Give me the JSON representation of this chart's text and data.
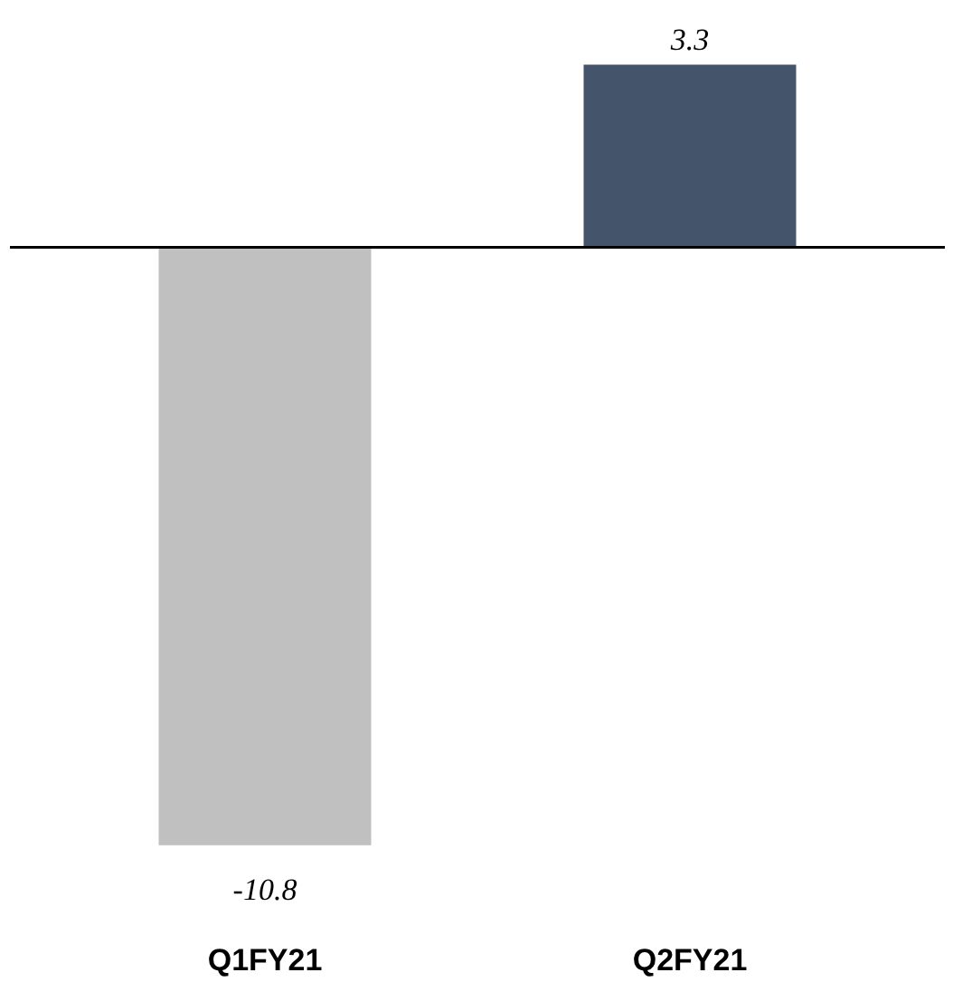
{
  "chart_data": {
    "type": "bar",
    "categories": [
      "Q1FY21",
      "Q2FY21"
    ],
    "values": [
      -10.8,
      3.3
    ],
    "colors": [
      "#c0c0c0",
      "#44546a"
    ],
    "data_labels": true,
    "grid": false
  }
}
